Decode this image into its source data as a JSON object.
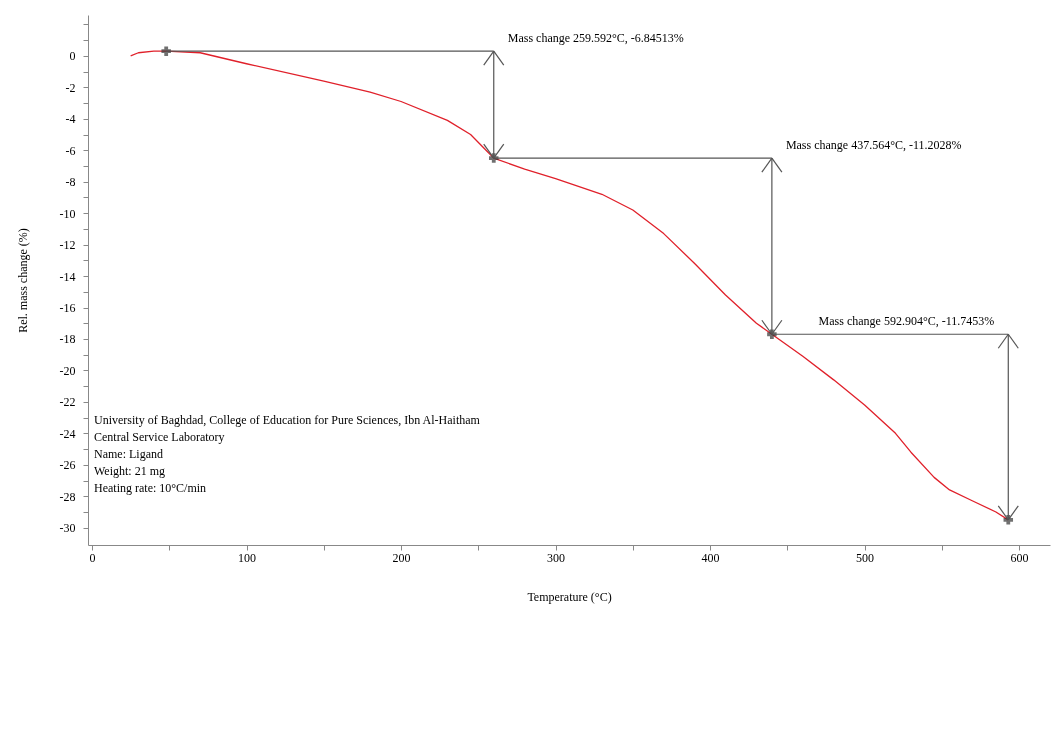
{
  "chart_data": {
    "type": "line",
    "xlabel": "Temperature (°C)",
    "ylabel": "Rel. mass change (%)",
    "xlim": [
      -2.6,
      620
    ],
    "ylim": [
      -31.1,
      2.6
    ],
    "xticks": [
      0,
      {
        "value": 50,
        "label": null
      },
      100,
      {
        "value": 150,
        "label": null
      },
      200,
      {
        "value": 250,
        "label": null
      },
      300,
      {
        "value": 350,
        "label": null
      },
      400,
      {
        "value": 450,
        "label": null
      },
      500,
      {
        "value": 550,
        "label": null
      },
      600
    ],
    "yticks": [
      -30,
      {
        "value": -29,
        "label": null
      },
      -28,
      {
        "value": -27,
        "label": null
      },
      -26,
      {
        "value": -25,
        "label": null
      },
      -24,
      {
        "value": -23,
        "label": null
      },
      -22,
      {
        "value": -21,
        "label": null
      },
      -20,
      {
        "value": -19,
        "label": null
      },
      -18,
      {
        "value": -17,
        "label": null
      },
      -16,
      {
        "value": -15,
        "label": null
      },
      -14,
      {
        "value": -13,
        "label": null
      },
      -12,
      {
        "value": -11,
        "label": null
      },
      -10,
      {
        "value": -9,
        "label": null
      },
      -8,
      {
        "value": -7,
        "label": null
      },
      -6,
      {
        "value": -5,
        "label": null
      },
      -4,
      {
        "value": -3,
        "label": null
      },
      -2,
      {
        "value": -1,
        "label": null
      },
      0,
      {
        "value": 1,
        "label": null
      },
      {
        "value": 2,
        "label": null
      }
    ],
    "series": [
      {
        "color": "#e0202a",
        "x": [
          25,
          30,
          40,
          48,
          70,
          100,
          150,
          180,
          200,
          230,
          245,
          255,
          260,
          280,
          300,
          330,
          350,
          370,
          390,
          410,
          430,
          440,
          460,
          480,
          500,
          520,
          530,
          545,
          555,
          570,
          585,
          593
        ],
        "values": [
          0,
          0.2,
          0.3,
          0.3,
          0.2,
          -0.5,
          -1.6,
          -2.3,
          -2.9,
          -4.1,
          -5.0,
          -6.0,
          -6.5,
          -7.2,
          -7.8,
          -8.8,
          -9.8,
          -11.3,
          -13.2,
          -15.2,
          -17.0,
          -17.7,
          -19.1,
          -20.6,
          -22.2,
          -24.0,
          -25.2,
          -26.8,
          -27.6,
          -28.3,
          -29.0,
          -29.5
        ]
      },
      {
        "type": "scatter",
        "marker": "cross",
        "color": "#333333",
        "x": [
          48,
          260,
          440,
          593
        ],
        "values": [
          0.3,
          -6.5,
          -17.7,
          -29.5
        ]
      }
    ],
    "annotations": [
      {
        "text": "Mass change 259.592°C, -6.84513%",
        "x": 260,
        "y": -6.5
      },
      {
        "text": "Mass change 437.564°C, -11.2028%",
        "x": 440,
        "y": -17.7
      },
      {
        "text": "Mass change 592.904°C, -11.7453%",
        "x": 593,
        "y": -29.5
      },
      "University of Baghdad, College of Education for Pure Sciences, Ibn Al-Haitham",
      "Central Service Laboratory",
      "Name: Ligand",
      "Weight: 21 mg",
      "Heating rate: 10°C/min"
    ],
    "grid": false,
    "marker": "none",
    "line_style": "solid"
  }
}
